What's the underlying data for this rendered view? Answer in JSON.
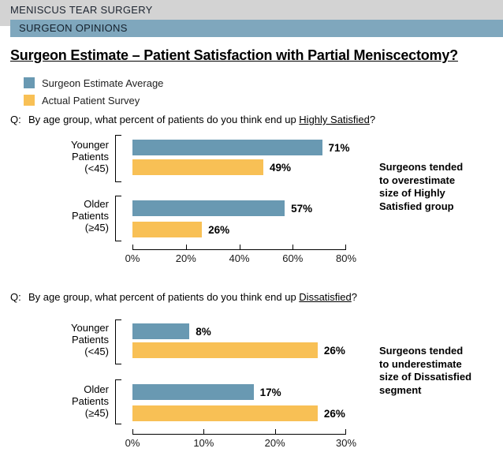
{
  "header": {
    "breadcrumb": "MENISCUS TEAR SURGERY",
    "section": "SURGEON OPINIONS"
  },
  "title": "Surgeon Estimate – Patient Satisfaction with Partial Meniscectomy?",
  "legend": {
    "items": [
      {
        "label": "Surgeon Estimate Average",
        "color": "#6999B2"
      },
      {
        "label": "Actual Patient Survey",
        "color": "#F8C055"
      }
    ]
  },
  "colors": {
    "surgeon_bar": "#6999B2",
    "patient_bar": "#F8C055",
    "header_band": "#D3D3D3",
    "section_band": "#7FA7BD"
  },
  "chart_data": [
    {
      "type": "bar",
      "orientation": "horizontal",
      "title": "Highly Satisfied",
      "question": {
        "prefix": "Q:",
        "text": "By age group, what percent of patients do you think end up ",
        "underlined": "Highly Satisfied",
        "suffix": "?"
      },
      "xlim": [
        0,
        80
      ],
      "tick_labels": [
        "0%",
        "20%",
        "40%",
        "60%",
        "80%"
      ],
      "categories": [
        "Younger Patients (<45)",
        "Older Patients (≥45)"
      ],
      "series": [
        {
          "name": "Surgeon Estimate Average",
          "values": [
            71,
            57
          ]
        },
        {
          "name": "Actual Patient Survey",
          "values": [
            49,
            26
          ]
        }
      ],
      "groups": [
        {
          "label_lines": [
            "Younger",
            "Patients",
            "(<45)"
          ],
          "bars": [
            {
              "series": "Surgeon Estimate Average",
              "value": 71,
              "label": "71%"
            },
            {
              "series": "Actual Patient Survey",
              "value": 49,
              "label": "49%"
            }
          ]
        },
        {
          "label_lines": [
            "Older",
            "Patients",
            "(≥45)"
          ],
          "bars": [
            {
              "series": "Surgeon Estimate Average",
              "value": 57,
              "label": "57%"
            },
            {
              "series": "Actual Patient Survey",
              "value": 26,
              "label": "26%"
            }
          ]
        }
      ],
      "annotation": "Surgeons tended to overestimate size of Highly Satisfied group",
      "annotation_lines": [
        "Surgeons tended",
        "to overestimate",
        "size of Highly",
        "Satisfied group"
      ]
    },
    {
      "type": "bar",
      "orientation": "horizontal",
      "title": "Dissatisfied",
      "question": {
        "prefix": "Q:",
        "text": "By age group, what percent of patients do you think end up ",
        "underlined": "Dissatisfied",
        "suffix": "?"
      },
      "xlim": [
        0,
        30
      ],
      "tick_labels": [
        "0%",
        "10%",
        "20%",
        "30%"
      ],
      "categories": [
        "Younger Patients (<45)",
        "Older Patients (≥45)"
      ],
      "series": [
        {
          "name": "Surgeon Estimate Average",
          "values": [
            8,
            17
          ]
        },
        {
          "name": "Actual Patient Survey",
          "values": [
            26,
            26
          ]
        }
      ],
      "groups": [
        {
          "label_lines": [
            "Younger",
            "Patients",
            "(<45)"
          ],
          "bars": [
            {
              "series": "Surgeon Estimate Average",
              "value": 8,
              "label": "8%"
            },
            {
              "series": "Actual Patient Survey",
              "value": 26,
              "label": "26%"
            }
          ]
        },
        {
          "label_lines": [
            "Older",
            "Patients",
            "(≥45)"
          ],
          "bars": [
            {
              "series": "Surgeon Estimate Average",
              "value": 17,
              "label": "17%"
            },
            {
              "series": "Actual Patient Survey",
              "value": 26,
              "label": "26%"
            }
          ]
        }
      ],
      "annotation": "Surgeons tended to underestimate size of Dissatisfied segment",
      "annotation_lines": [
        "Surgeons tended",
        "to underestimate",
        "size of Dissatisfied",
        "segment"
      ]
    }
  ]
}
